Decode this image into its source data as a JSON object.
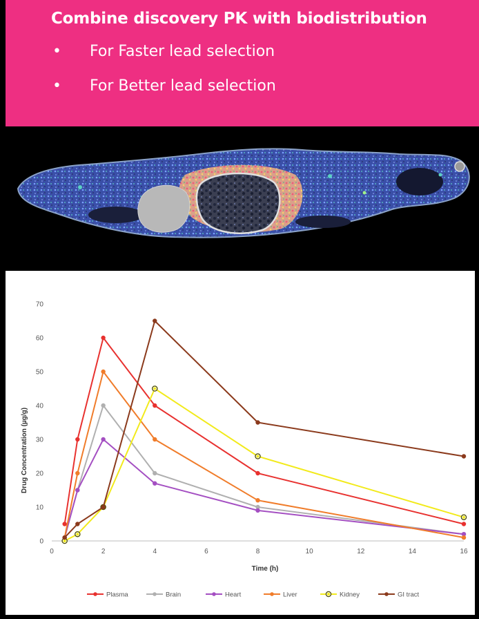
{
  "banner": {
    "title": "Combine discovery PK with biodistribution",
    "bullets": [
      {
        "symbol": "•",
        "text": "For Faster lead selection"
      },
      {
        "symbol": "•",
        "text": "For Better lead selection"
      }
    ],
    "background": "#ee2f82"
  },
  "image": {
    "subject": "whole-body-tissue-section-icon"
  },
  "chart_data": {
    "type": "line",
    "title": "",
    "xlabel": "Time (h)",
    "ylabel": "Drug Concentration (µg/g)",
    "xlim": [
      0,
      16
    ],
    "ylim": [
      0,
      70
    ],
    "xticks": [
      0,
      2,
      4,
      6,
      8,
      10,
      12,
      14,
      16
    ],
    "yticks": [
      0,
      10,
      20,
      30,
      40,
      50,
      60,
      70
    ],
    "grid": false,
    "legend": "bottom",
    "series": [
      {
        "name": "Plasma",
        "color": "#e8312f",
        "marker": "dot",
        "points": [
          [
            0.5,
            5
          ],
          [
            1,
            30
          ],
          [
            2,
            60
          ],
          [
            4,
            40
          ],
          [
            8,
            20
          ],
          [
            16,
            5
          ]
        ]
      },
      {
        "name": "Brain",
        "color": "#b0b0b0",
        "marker": "dot",
        "points": [
          [
            0.5,
            1
          ],
          [
            1,
            15
          ],
          [
            2,
            40
          ],
          [
            4,
            20
          ],
          [
            8,
            10
          ],
          [
            16,
            2
          ]
        ]
      },
      {
        "name": "Heart",
        "color": "#a44fc2",
        "marker": "dot",
        "points": [
          [
            0.5,
            1
          ],
          [
            1,
            15
          ],
          [
            2,
            30
          ],
          [
            4,
            17
          ],
          [
            8,
            9
          ],
          [
            16,
            2
          ]
        ]
      },
      {
        "name": "Liver",
        "color": "#f07c2a",
        "marker": "dot",
        "points": [
          [
            0.5,
            1
          ],
          [
            1,
            20
          ],
          [
            2,
            50
          ],
          [
            4,
            30
          ],
          [
            8,
            12
          ],
          [
            16,
            1
          ]
        ]
      },
      {
        "name": "Kidney",
        "color": "#f2ea1b",
        "marker": "ring",
        "points": [
          [
            0.5,
            0
          ],
          [
            1,
            2
          ],
          [
            2,
            10
          ],
          [
            4,
            45
          ],
          [
            8,
            25
          ],
          [
            16,
            7
          ]
        ]
      },
      {
        "name": "GI tract",
        "color": "#8b3a1c",
        "marker": "dot",
        "points": [
          [
            0.5,
            1
          ],
          [
            1,
            5
          ],
          [
            2,
            10
          ],
          [
            4,
            65
          ],
          [
            8,
            35
          ],
          [
            16,
            25
          ]
        ]
      }
    ]
  }
}
